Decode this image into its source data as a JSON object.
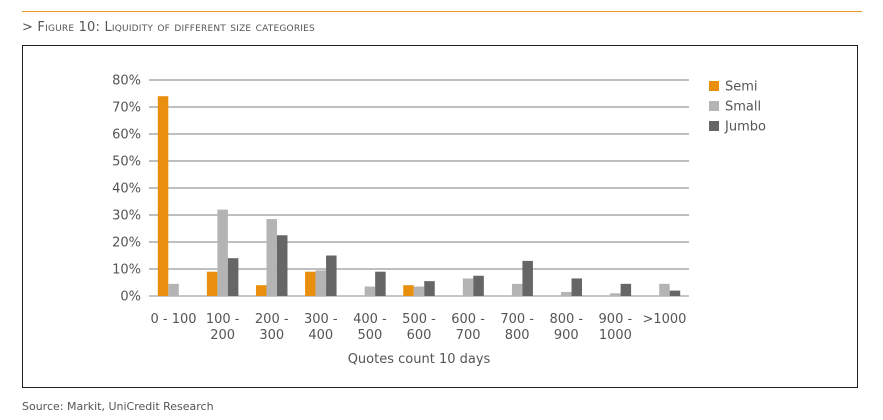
{
  "figure": {
    "title": "> Figure 10: Liquidity of different size categories",
    "source": "Source: Markit, UniCredit Research",
    "accent_color": "#e39b1f"
  },
  "chart_data": {
    "type": "bar",
    "categories": [
      [
        "0 - 100"
      ],
      [
        "100 -",
        "200"
      ],
      [
        "200 -",
        "300"
      ],
      [
        "300 -",
        "400"
      ],
      [
        "400 -",
        "500"
      ],
      [
        "500 -",
        "600"
      ],
      [
        "600 -",
        "700"
      ],
      [
        "700 -",
        "800"
      ],
      [
        "800 -",
        "900"
      ],
      [
        "900 -",
        "1000"
      ],
      [
        ">1000"
      ]
    ],
    "series": [
      {
        "name": "Semi",
        "color": "#e8900d",
        "values": [
          74,
          9,
          4,
          9,
          0,
          4,
          0,
          0,
          0,
          0,
          0
        ]
      },
      {
        "name": "Small",
        "color": "#b4b4b4",
        "values": [
          4.5,
          32,
          28.5,
          9.5,
          3.5,
          3.5,
          6.5,
          4.5,
          1.5,
          1,
          4.5
        ]
      },
      {
        "name": "Jumbo",
        "color": "#666666",
        "values": [
          0,
          14,
          22.5,
          15,
          9,
          5.5,
          7.5,
          13,
          6.5,
          4.5,
          2
        ]
      }
    ],
    "y_ticks": [
      "0%",
      "10%",
      "20%",
      "30%",
      "40%",
      "50%",
      "60%",
      "70%",
      "80%"
    ],
    "ylim": [
      0,
      80
    ],
    "xlabel": "Quotes count 10 days",
    "ylabel": "",
    "grid": true,
    "legend_position": "right"
  }
}
